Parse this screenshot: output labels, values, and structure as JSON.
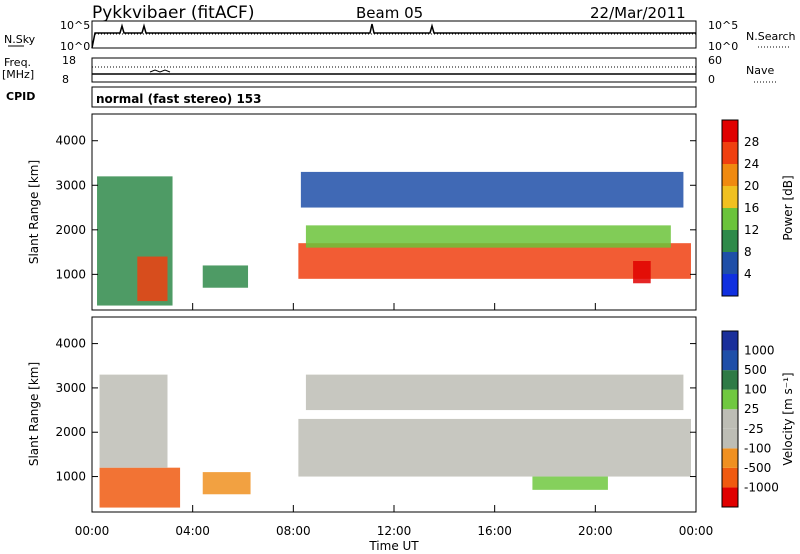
{
  "header": {
    "station": "Pykkvibaer (fitACF)",
    "beam": "Beam 05",
    "date": "22/Mar/2011"
  },
  "strip_panels": {
    "nsky": {
      "label": "N.Sky",
      "left_ticks": [
        "10^5",
        "10^0"
      ],
      "right_label": "N.Search",
      "right_ticks": [
        "10^5",
        "10^0"
      ]
    },
    "freq": {
      "label_top": "Freq.",
      "label_bottom": "[MHz]",
      "left_ticks": [
        "18",
        "8"
      ],
      "right_label": "Nave",
      "right_ticks": [
        "60",
        "0"
      ]
    },
    "cpid": {
      "label": "CPID",
      "text": "normal (fast stereo) 153"
    }
  },
  "colors": {
    "power": [
      "#1030e0",
      "#1f4fa8",
      "#2f8a4a",
      "#6bc33a",
      "#f0c020",
      "#f08a10",
      "#f04010",
      "#e00000"
    ],
    "velocity": [
      "#e00000",
      "#f05a10",
      "#f09020",
      "#bdbdb5",
      "#bdbdb5",
      "#70c840",
      "#2f7a46",
      "#1f4fa8",
      "#1a2f9a"
    ],
    "velocity_grey": "#bdbdb5"
  },
  "chart_data": [
    {
      "type": "heatmap",
      "title": "",
      "ylabel": "Slant Range [km]",
      "xlabel": "",
      "y_ticks": [
        "1000",
        "2000",
        "3000",
        "4000"
      ],
      "ylim": [
        200,
        4600
      ],
      "xlim": [
        0,
        24
      ],
      "colorbar_label": "Power [dB]",
      "colorbar_ticks": [
        "4",
        "8",
        "12",
        "16",
        "20",
        "24",
        "28"
      ],
      "colorbar_range": [
        0,
        32
      ],
      "regions": [
        {
          "t0": 8.2,
          "t1": 23.8,
          "r0": 900,
          "r1": 1700,
          "value": 26
        },
        {
          "t0": 8.5,
          "t1": 23.0,
          "r0": 1600,
          "r1": 2100,
          "value": 15
        },
        {
          "t0": 8.3,
          "t1": 23.5,
          "r0": 2500,
          "r1": 3300,
          "value": 7
        },
        {
          "t0": 0.2,
          "t1": 3.2,
          "r0": 300,
          "r1": 3200,
          "value": 9
        },
        {
          "t0": 1.8,
          "t1": 3.0,
          "r0": 400,
          "r1": 1400,
          "value": 27
        },
        {
          "t0": 4.4,
          "t1": 6.2,
          "r0": 700,
          "r1": 1200,
          "value": 8
        },
        {
          "t0": 21.5,
          "t1": 22.2,
          "r0": 800,
          "r1": 1300,
          "value": 29
        }
      ]
    },
    {
      "type": "heatmap",
      "title": "",
      "ylabel": "Slant Range [km]",
      "xlabel": "Time UT",
      "y_ticks": [
        "1000",
        "2000",
        "3000",
        "4000"
      ],
      "ylim": [
        200,
        4600
      ],
      "xlim": [
        0,
        24
      ],
      "x_ticks": [
        "00:00",
        "04:00",
        "08:00",
        "12:00",
        "16:00",
        "20:00",
        "00:00"
      ],
      "colorbar_label": "Velocity [m s⁻¹]",
      "colorbar_ticks": [
        "1000",
        "500",
        "100",
        "25",
        "-25",
        "-100",
        "-500",
        "-1000"
      ],
      "regions": [
        {
          "t0": 8.2,
          "t1": 23.8,
          "r0": 1000,
          "r1": 2300,
          "value": 0
        },
        {
          "t0": 8.5,
          "t1": 23.5,
          "r0": 2500,
          "r1": 3300,
          "value": 0
        },
        {
          "t0": 17.5,
          "t1": 20.5,
          "r0": 700,
          "r1": 1000,
          "value": 150
        },
        {
          "t0": 0.3,
          "t1": 3.5,
          "r0": 300,
          "r1": 1200,
          "value": -200
        },
        {
          "t0": 0.3,
          "t1": 3.0,
          "r0": 1200,
          "r1": 3300,
          "value": 0
        },
        {
          "t0": 4.4,
          "t1": 6.3,
          "r0": 600,
          "r1": 1100,
          "value": -60
        }
      ]
    }
  ]
}
